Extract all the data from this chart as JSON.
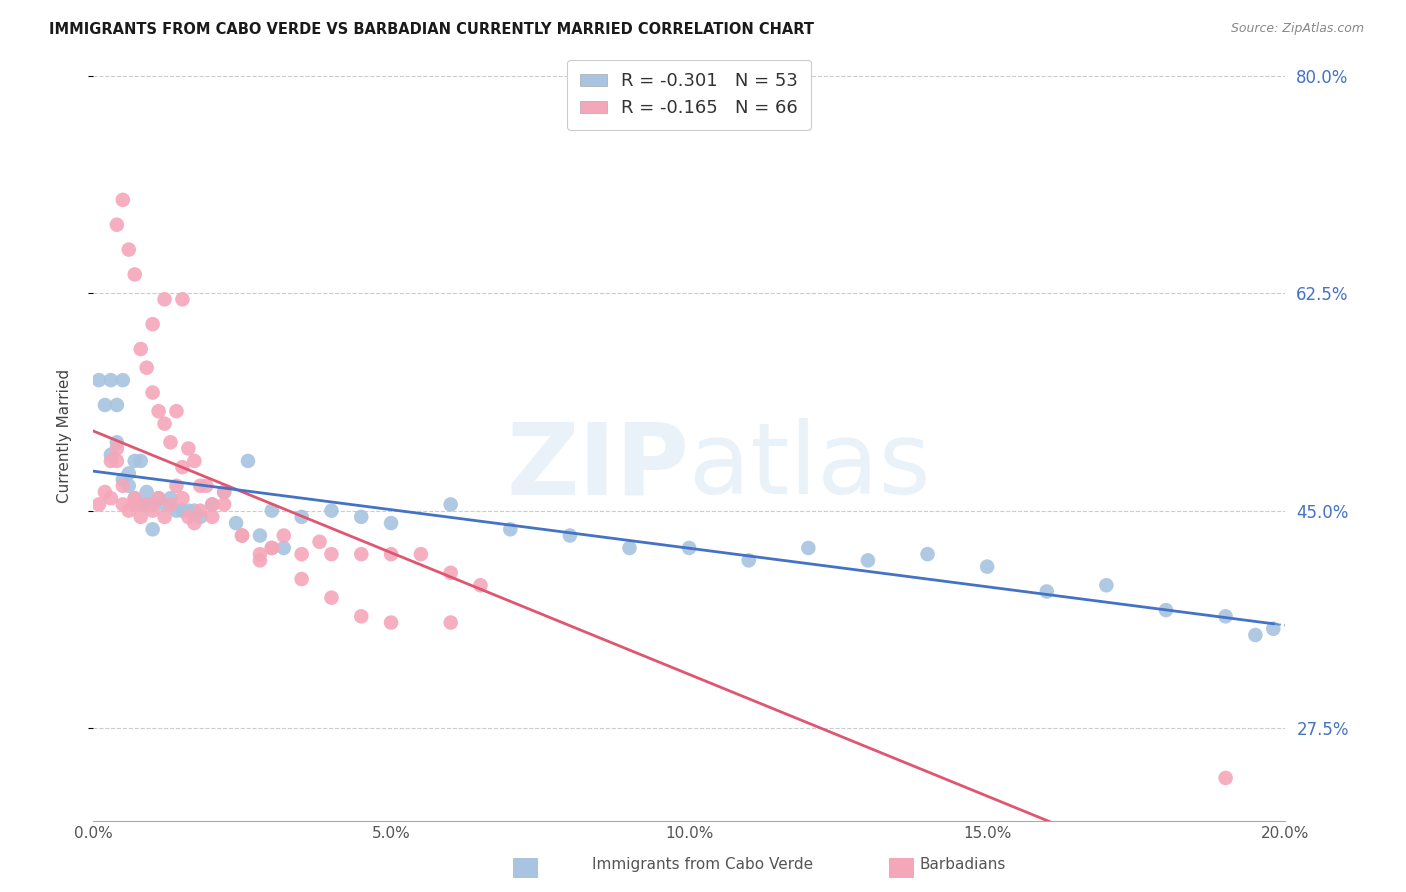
{
  "title": "IMMIGRANTS FROM CABO VERDE VS BARBADIAN CURRENTLY MARRIED CORRELATION CHART",
  "source": "Source: ZipAtlas.com",
  "ylabel": "Currently Married",
  "xlim": [
    0.0,
    0.2
  ],
  "ylim": [
    0.2,
    0.82
  ],
  "y_ticks": [
    0.275,
    0.45,
    0.625,
    0.8
  ],
  "y_labels": [
    "27.5%",
    "45.0%",
    "62.5%",
    "80.0%"
  ],
  "x_ticks": [
    0.0,
    0.05,
    0.1,
    0.15,
    0.2
  ],
  "x_tick_labels": [
    "0.0%",
    "5.0%",
    "10.0%",
    "15.0%",
    "20.0%"
  ],
  "cabo_verde_color": "#a8c4e0",
  "barbadian_color": "#f4a7b9",
  "cabo_verde_line_color": "#4472c4",
  "barbadian_line_color": "#e05570",
  "legend_cabo_r": "-0.301",
  "legend_cabo_n": "53",
  "legend_barb_r": "-0.165",
  "legend_barb_n": "66",
  "cabo_verde_x": [
    0.001,
    0.002,
    0.003,
    0.003,
    0.004,
    0.004,
    0.005,
    0.005,
    0.006,
    0.006,
    0.007,
    0.007,
    0.008,
    0.008,
    0.009,
    0.009,
    0.01,
    0.01,
    0.011,
    0.012,
    0.013,
    0.014,
    0.015,
    0.016,
    0.017,
    0.018,
    0.02,
    0.022,
    0.024,
    0.026,
    0.028,
    0.03,
    0.032,
    0.035,
    0.04,
    0.045,
    0.05,
    0.06,
    0.07,
    0.08,
    0.09,
    0.1,
    0.11,
    0.12,
    0.13,
    0.14,
    0.15,
    0.16,
    0.17,
    0.18,
    0.19,
    0.195,
    0.198
  ],
  "cabo_verde_y": [
    0.555,
    0.535,
    0.555,
    0.495,
    0.535,
    0.505,
    0.555,
    0.475,
    0.48,
    0.47,
    0.49,
    0.46,
    0.455,
    0.49,
    0.465,
    0.455,
    0.455,
    0.435,
    0.46,
    0.455,
    0.46,
    0.45,
    0.45,
    0.45,
    0.45,
    0.445,
    0.455,
    0.465,
    0.44,
    0.49,
    0.43,
    0.45,
    0.42,
    0.445,
    0.45,
    0.445,
    0.44,
    0.455,
    0.435,
    0.43,
    0.42,
    0.42,
    0.41,
    0.42,
    0.41,
    0.415,
    0.405,
    0.385,
    0.39,
    0.37,
    0.365,
    0.35,
    0.355
  ],
  "barbadian_x": [
    0.001,
    0.002,
    0.003,
    0.003,
    0.004,
    0.004,
    0.005,
    0.005,
    0.006,
    0.007,
    0.007,
    0.008,
    0.009,
    0.01,
    0.011,
    0.012,
    0.013,
    0.014,
    0.015,
    0.016,
    0.017,
    0.018,
    0.02,
    0.022,
    0.025,
    0.028,
    0.03,
    0.032,
    0.035,
    0.038,
    0.04,
    0.045,
    0.05,
    0.055,
    0.06,
    0.065,
    0.01,
    0.012,
    0.015,
    0.004,
    0.005,
    0.006,
    0.007,
    0.008,
    0.009,
    0.01,
    0.011,
    0.012,
    0.013,
    0.014,
    0.015,
    0.016,
    0.017,
    0.018,
    0.019,
    0.02,
    0.022,
    0.025,
    0.028,
    0.03,
    0.035,
    0.04,
    0.045,
    0.05,
    0.06,
    0.19
  ],
  "barbadian_y": [
    0.455,
    0.465,
    0.46,
    0.49,
    0.49,
    0.5,
    0.47,
    0.455,
    0.45,
    0.46,
    0.455,
    0.445,
    0.455,
    0.45,
    0.46,
    0.445,
    0.455,
    0.47,
    0.46,
    0.445,
    0.44,
    0.45,
    0.445,
    0.455,
    0.43,
    0.41,
    0.42,
    0.43,
    0.415,
    0.425,
    0.415,
    0.415,
    0.415,
    0.415,
    0.4,
    0.39,
    0.6,
    0.62,
    0.62,
    0.68,
    0.7,
    0.66,
    0.64,
    0.58,
    0.565,
    0.545,
    0.53,
    0.52,
    0.505,
    0.53,
    0.485,
    0.5,
    0.49,
    0.47,
    0.47,
    0.455,
    0.465,
    0.43,
    0.415,
    0.42,
    0.395,
    0.38,
    0.365,
    0.36,
    0.36,
    0.235
  ]
}
